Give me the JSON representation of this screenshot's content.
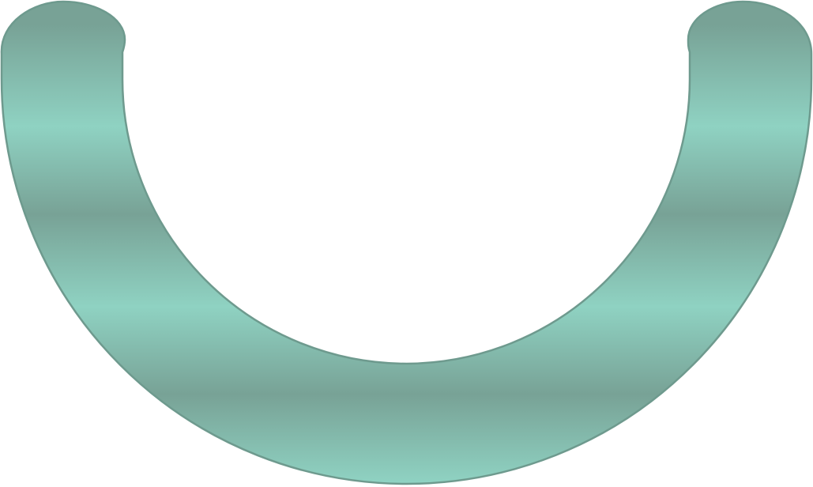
{
  "shape": {
    "kind": "u-shaped-arc",
    "colors": {
      "band_dark": "#78A296",
      "band_light": "#8FD2C2",
      "outline": "#6E9A8E",
      "background": "#FFFFFF"
    }
  }
}
